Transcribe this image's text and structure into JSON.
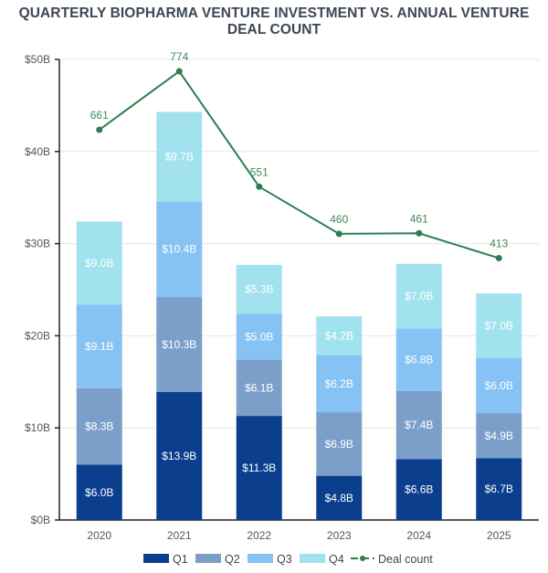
{
  "chart_data": {
    "type": "bar",
    "stacked": true,
    "title": "QUARTERLY BIOPHARMA VENTURE INVESTMENT VS. ANNUAL VENTURE DEAL COUNT",
    "xlabel": "",
    "ylabel": "",
    "categories": [
      "2020",
      "2021",
      "2022",
      "2023",
      "2024",
      "2025"
    ],
    "ylim": [
      0,
      50
    ],
    "yticks": [
      0,
      10,
      20,
      30,
      40,
      50
    ],
    "ytick_labels": [
      "$0B",
      "$10B",
      "$20B",
      "$30B",
      "$40B",
      "$50B"
    ],
    "grid": true,
    "legend_position": "bottom",
    "series": [
      {
        "name": "Q1",
        "color": "#0b3f8d",
        "values": [
          6.0,
          13.9,
          11.3,
          4.8,
          6.6,
          6.7
        ],
        "labels": [
          "$6.0B",
          "$13.9B",
          "$11.3B",
          "$4.8B",
          "$6.6B",
          "$6.7B"
        ]
      },
      {
        "name": "Q2",
        "color": "#7b9fc9",
        "values": [
          8.3,
          10.3,
          6.1,
          6.9,
          7.4,
          4.9
        ],
        "labels": [
          "$8.3B",
          "$10.3B",
          "$6.1B",
          "$6.9B",
          "$7.4B",
          "$4.9B"
        ]
      },
      {
        "name": "Q3",
        "color": "#86c2f4",
        "values": [
          9.1,
          10.4,
          5.0,
          6.2,
          6.8,
          6.0
        ],
        "labels": [
          "$9.1B",
          "$10.4B",
          "$5.0B",
          "$6.2B",
          "$6.8B",
          "$6.0B"
        ]
      },
      {
        "name": "Q4",
        "color": "#a2e2ee",
        "values": [
          9.0,
          9.7,
          5.3,
          4.2,
          7.0,
          7.0
        ],
        "labels": [
          "$9.0B",
          "$9.7B",
          "$5.3B",
          "$4.2B",
          "$7.0B",
          "$7.0B"
        ]
      }
    ],
    "line_series": {
      "name": "Deal count",
      "type": "line",
      "color": "#2e7d4f",
      "values": [
        661,
        774,
        551,
        460,
        461,
        413
      ],
      "labels": [
        "661",
        "774",
        "551",
        "460",
        "461",
        "413"
      ]
    }
  }
}
